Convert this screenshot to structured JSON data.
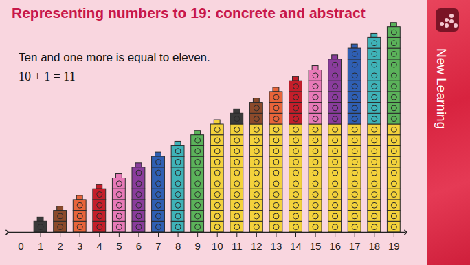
{
  "chart_data": {
    "type": "bar",
    "title": "Representing numbers to 19: concrete and abstract",
    "subtitle": "Ten and one more is equal to eleven.",
    "annotation": "10 + 1 = 11",
    "x": [
      1,
      2,
      3,
      4,
      5,
      6,
      7,
      8,
      9,
      10,
      11,
      12,
      13,
      14,
      15,
      16,
      17,
      18,
      19
    ],
    "series": [
      {
        "color": "#f3d23c",
        "values": [
          0,
          0,
          0,
          0,
          0,
          0,
          0,
          0,
          0,
          10,
          10,
          10,
          10,
          10,
          10,
          10,
          10,
          10,
          10
        ]
      },
      {
        "colors": [
          "#3a3a3a",
          "#8b4a2b",
          "#e8643a",
          "#c41e2a",
          "#e87ab8",
          "#8a3c9c",
          "#2f5fb3",
          "#3fb3b8",
          "#5bb25a",
          "#f3d23c",
          "#3a3a3a",
          "#8b4a2b",
          "#e8643a",
          "#c41e2a",
          "#e87ab8",
          "#8a3c9c",
          "#2f5fb3",
          "#3fb3b8",
          "#5bb25a"
        ],
        "values": [
          1,
          2,
          3,
          4,
          5,
          6,
          7,
          8,
          9,
          0,
          1,
          2,
          3,
          4,
          5,
          6,
          7,
          8,
          9
        ]
      }
    ],
    "stacked": true,
    "xlim": [
      -0.7,
      19.6
    ],
    "xticks": [
      0,
      1,
      2,
      3,
      4,
      5,
      6,
      7,
      8,
      9,
      10,
      11,
      12,
      13,
      14,
      15,
      16,
      17,
      18,
      19
    ],
    "ylim": [
      0,
      20
    ],
    "tick_labels": "x",
    "grid": false
  },
  "side_label": "New Learning"
}
